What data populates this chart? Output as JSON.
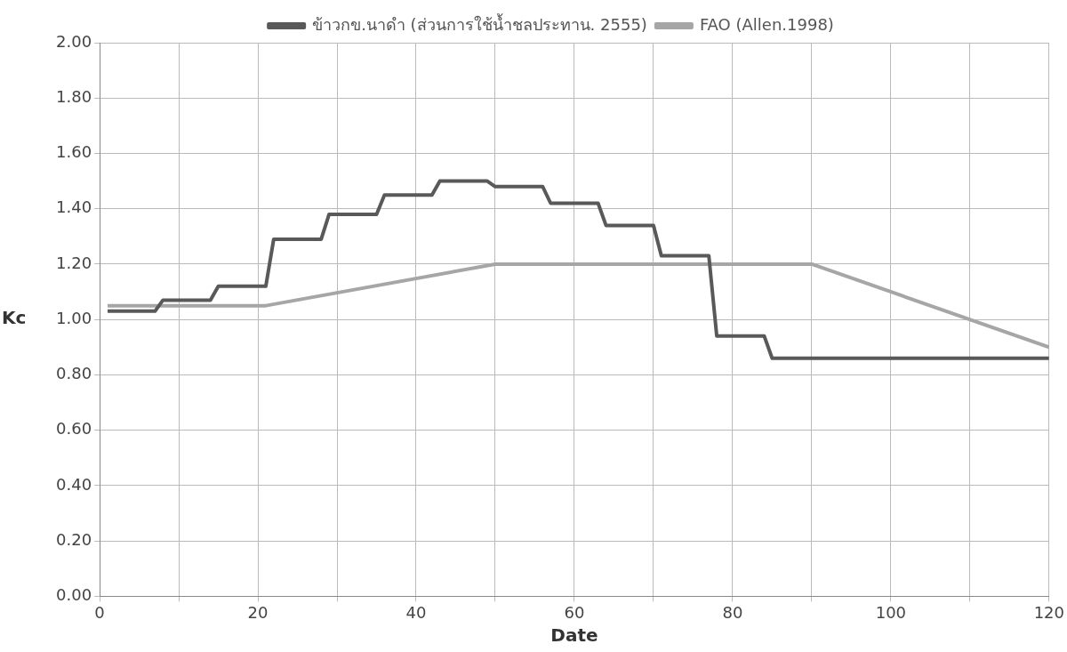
{
  "chart_data": {
    "type": "line",
    "xlabel": "Date",
    "ylabel": "Kc",
    "legend": "top",
    "grid": true,
    "marker": "none",
    "line_style": "solid",
    "xlim": [
      0,
      120
    ],
    "xticks": [
      0,
      {
        "value": 10,
        "label": null
      },
      20,
      {
        "value": 30,
        "label": null
      },
      40,
      {
        "value": 50,
        "label": null
      },
      60,
      {
        "value": 70,
        "label": null
      },
      80,
      {
        "value": 90,
        "label": null
      },
      100,
      {
        "value": 110,
        "label": null
      },
      120
    ],
    "ylim": [
      0,
      2
    ],
    "yticks": [
      {
        "value": 0,
        "label": "0.00"
      },
      {
        "value": 0.2,
        "label": "0.20"
      },
      {
        "value": 0.4,
        "label": "0.40"
      },
      {
        "value": 0.6,
        "label": "0.60"
      },
      {
        "value": 0.8,
        "label": "0.80"
      },
      {
        "value": 1,
        "label": "1.00"
      },
      {
        "value": 1.2,
        "label": "1.20"
      },
      {
        "value": 1.4,
        "label": "1.40"
      },
      {
        "value": 1.6,
        "label": "1.60"
      },
      {
        "value": 1.8,
        "label": "1.80"
      },
      {
        "value": 2,
        "label": "2.00"
      }
    ],
    "series": [
      {
        "name": "ข้าวกข.นาดำ (ส่วนการใช้น้ำชลประทาน. 2555)",
        "color": "#595959",
        "x": [
          1,
          7,
          8,
          14,
          15,
          21,
          22,
          28,
          29,
          35,
          36,
          42,
          43,
          49,
          50,
          56,
          57,
          63,
          64,
          70,
          71,
          77,
          78,
          84,
          85,
          120
        ],
        "values": [
          1.03,
          1.03,
          1.07,
          1.07,
          1.12,
          1.12,
          1.29,
          1.29,
          1.38,
          1.38,
          1.45,
          1.45,
          1.5,
          1.5,
          1.48,
          1.48,
          1.42,
          1.42,
          1.34,
          1.34,
          1.23,
          1.23,
          0.94,
          0.94,
          0.86,
          0.86
        ]
      },
      {
        "name": "FAO (Allen.1998)",
        "color": "#a6a6a6",
        "x": [
          1,
          21,
          50,
          90,
          120
        ],
        "values": [
          1.05,
          1.05,
          1.2,
          1.2,
          0.9
        ]
      }
    ]
  }
}
